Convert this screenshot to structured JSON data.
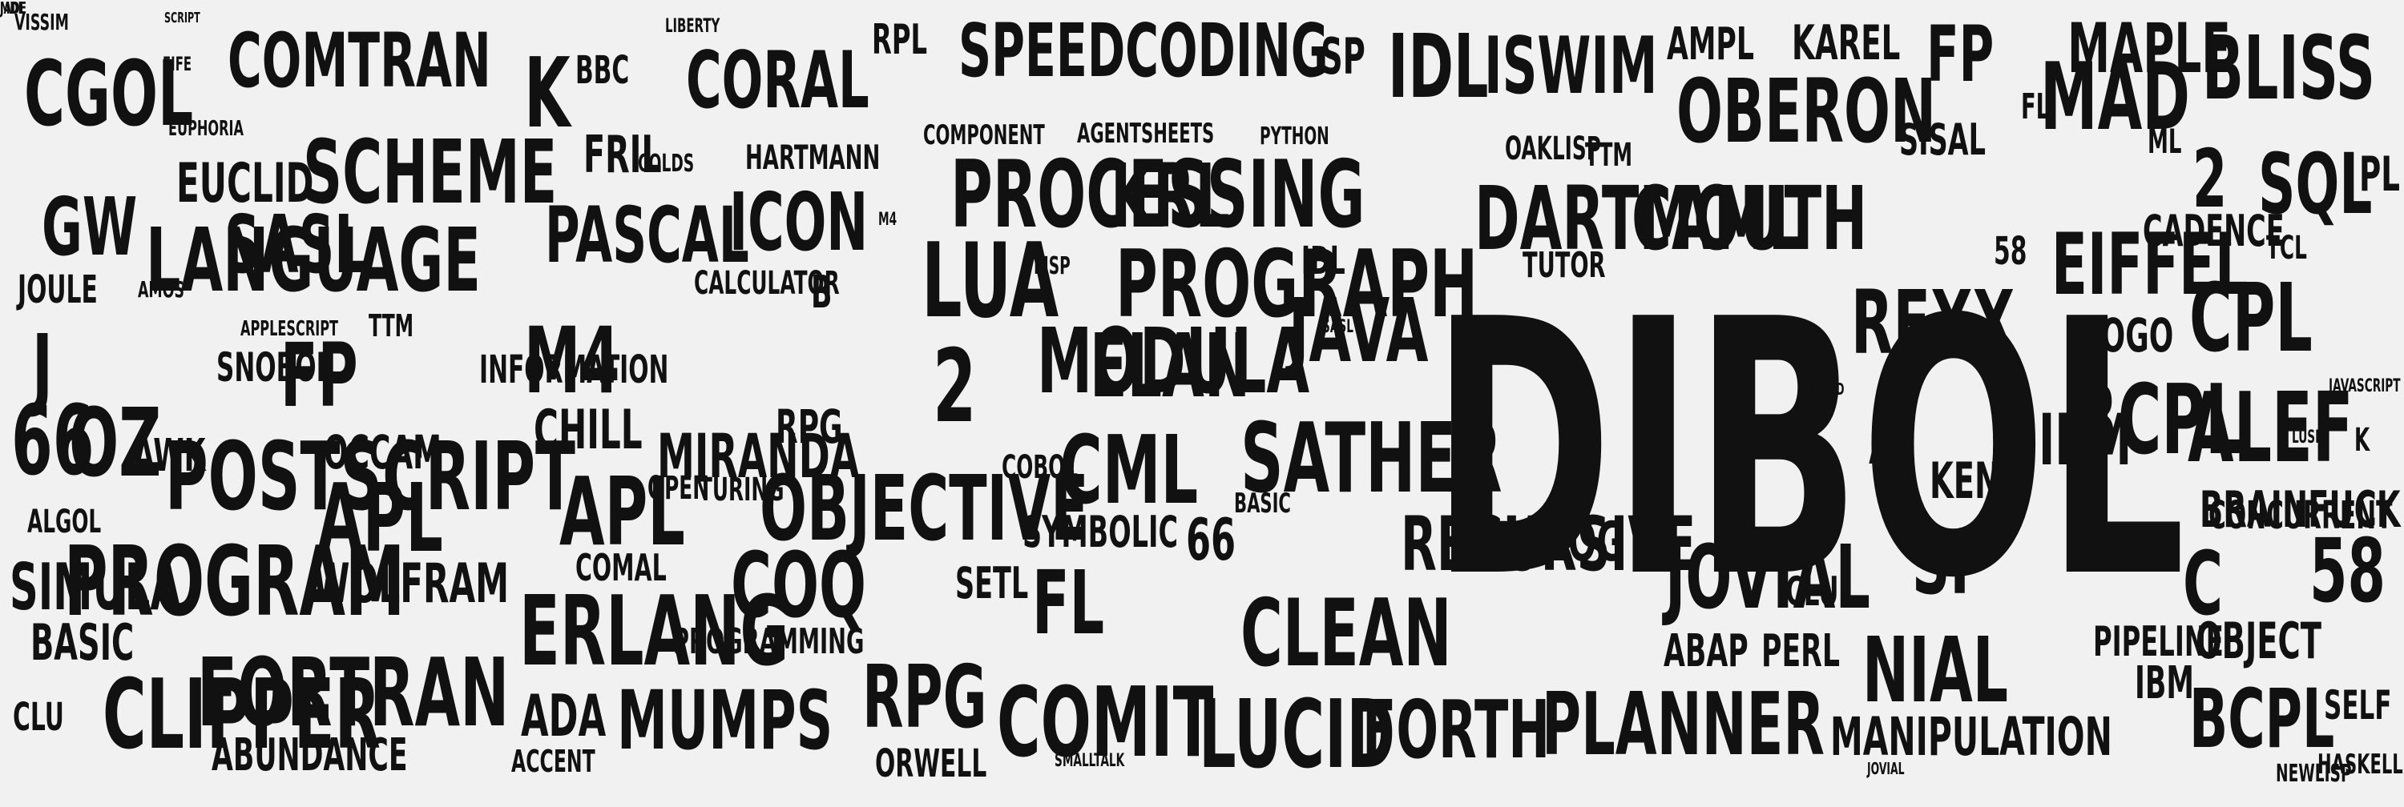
{
  "image": {
    "kind": "word cloud",
    "background_color": "#f1f1f1",
    "text_color": "#111111"
  },
  "words": [
    "VISSIM",
    "SCRIPT",
    "CGOL",
    "FIFE",
    "COMTRAN",
    "BBC",
    "CORAL",
    "K",
    "LIBERTY",
    "RPL",
    "SPEEDCODING",
    "SP",
    "IDL",
    "ISWIM",
    "AMPL",
    "KAREL",
    "FP",
    "MAPLE",
    "BLISS",
    "EUPHORIA",
    "EUCLID",
    "SCHEME",
    "FRIL",
    "COLDS",
    "HARTMANN",
    "COMPONENT",
    "AGENTSHEETS",
    "PYTHON",
    "OBERON",
    "SISAL",
    "FL",
    "MAD",
    "ML",
    "OAKLISP",
    "TTM",
    "2",
    "SQL",
    "PL",
    "GW",
    "LANGUAGE",
    "SASL",
    "PASCAL",
    "ICON",
    "PROCESSING",
    "KRL",
    "DARTMOUTH",
    "CAML",
    "CADENCE",
    "TCL",
    "58",
    "EIFFEL",
    "JOULE",
    "AMOS",
    "CALCULATOR",
    "B",
    "LUA",
    "LISP",
    "PROGRAPH",
    "IDL",
    "TUTOR",
    "J",
    "APPLESCRIPT",
    "TTM",
    "JAVA",
    "DIBOL",
    "REXX",
    "LOGO",
    "CPL",
    "SNOBOL",
    "FP",
    "INFORMATION",
    "M4",
    "2",
    "MODULA",
    "ELAN",
    "A",
    "IBM",
    "BCPL",
    "ALEF",
    "K",
    "66",
    "OZ",
    "AWK",
    "POSTSCRIPT",
    "OCCAM",
    "CHILL",
    "MIRANDA",
    "RPG",
    "COBOL",
    "CML",
    "SATHER",
    "BASIC",
    "CONCURRENT",
    "KENT",
    "BRAINFUCK",
    "ALGOL",
    "APL",
    "APL",
    "OPEN",
    "TURING",
    "OBJECTIVE",
    "SYMBOLIC",
    "66",
    "RECURSIVE",
    "PROLOG",
    "JOVIAL",
    "SP",
    "C",
    "58",
    "SIMULA",
    "PROGRAM",
    "WOLFRAM",
    "COMAL",
    "COQ",
    "SETL",
    "FL",
    "CLU",
    "CLIPPER",
    "BASIC",
    "ERLANG",
    "PROGRAMMING",
    "CLEAN",
    "ABAP",
    "PERL",
    "PIPELINE",
    "OBJECT",
    "NIAL",
    "IBM",
    "CLU",
    "FORTRAN",
    "ADA",
    "MUMPS",
    "RPG",
    "COMIT",
    "LUCID",
    "FORTH",
    "PLANNER",
    "BCPL",
    "SELF",
    "ABUNDANCE",
    "ACCENT",
    "ORWELL",
    "MANIPULATION",
    "HASKELL",
    "NEWLISP",
    "M4",
    "SASL",
    "LUSH",
    "SMALLTALK",
    "JAVASCRIPT",
    "LUCID",
    "JOVIAL",
    "I",
    "JADE",
    "MDL"
  ]
}
